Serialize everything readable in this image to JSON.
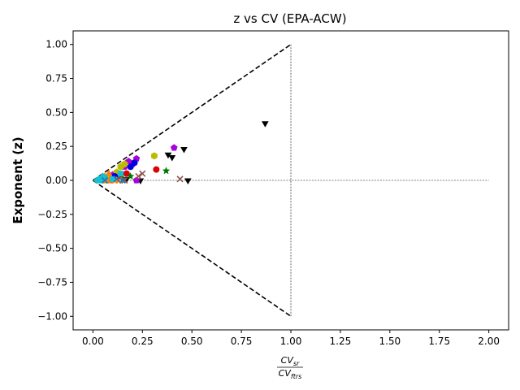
{
  "chart_data": {
    "type": "scatter",
    "title": "z vs CV (EPA-ACW)",
    "ylabel": "Exponent (z)",
    "xlabel": {
      "numerator": "CV",
      "numerator_sub": "sr",
      "denominator": "CV",
      "denominator_sub": "ftrs"
    },
    "xlim": [
      -0.1,
      2.1
    ],
    "ylim": [
      -1.1,
      1.1
    ],
    "x_ticks": [
      "0.00",
      "0.25",
      "0.50",
      "0.75",
      "1.00",
      "1.25",
      "1.50",
      "1.75",
      "2.00"
    ],
    "x_tick_values": [
      0,
      0.25,
      0.5,
      0.75,
      1.0,
      1.25,
      1.5,
      1.75,
      2.0
    ],
    "y_ticks": [
      "1.00",
      "0.75",
      "0.50",
      "0.25",
      "0.00",
      "−0.25",
      "−0.50",
      "−0.75",
      "−1.00"
    ],
    "y_tick_values": [
      1.0,
      0.75,
      0.5,
      0.25,
      0.0,
      -0.25,
      -0.5,
      -0.75,
      -1.0
    ],
    "grid": false,
    "reference_lines": [
      {
        "style": "dashed",
        "color": "#000000",
        "points": [
          [
            0,
            0
          ],
          [
            1,
            1
          ]
        ]
      },
      {
        "style": "dashed",
        "color": "#000000",
        "points": [
          [
            0,
            0
          ],
          [
            1,
            -1
          ]
        ]
      },
      {
        "style": "dotted",
        "color": "#000000",
        "points": [
          [
            1,
            1
          ],
          [
            1,
            -1
          ]
        ]
      },
      {
        "style": "dotted",
        "color": "#000000",
        "points": [
          [
            0,
            0
          ],
          [
            2,
            0
          ]
        ]
      }
    ],
    "series": [
      {
        "marker": "triangle-down",
        "color": "#000000",
        "points": [
          [
            0.87,
            0.42
          ],
          [
            0.46,
            0.23
          ],
          [
            0.38,
            0.19
          ],
          [
            0.4,
            0.17
          ],
          [
            0.48,
            0.0
          ],
          [
            0.24,
            0.0
          ],
          [
            0.17,
            0.01
          ]
        ]
      },
      {
        "marker": "pentagon",
        "color": "#aa00dd",
        "points": [
          [
            0.41,
            0.24
          ],
          [
            0.22,
            0.16
          ],
          [
            0.18,
            0.14
          ],
          [
            0.2,
            0.12
          ],
          [
            0.16,
            0.1
          ],
          [
            0.1,
            0.04
          ],
          [
            0.22,
            0.0
          ]
        ]
      },
      {
        "marker": "hexagon",
        "color": "#bbbb00",
        "points": [
          [
            0.31,
            0.18
          ],
          [
            0.14,
            0.1
          ],
          [
            0.16,
            0.12
          ],
          [
            0.12,
            0.06
          ],
          [
            0.08,
            0.02
          ]
        ]
      },
      {
        "marker": "circle",
        "color": "#dd0000",
        "points": [
          [
            0.32,
            0.08
          ],
          [
            0.17,
            0.05
          ],
          [
            0.14,
            0.03
          ],
          [
            0.12,
            0.02
          ]
        ]
      },
      {
        "marker": "circle",
        "color": "#0000dd",
        "points": [
          [
            0.21,
            0.13
          ],
          [
            0.19,
            0.1
          ],
          [
            0.11,
            0.03
          ]
        ]
      },
      {
        "marker": "star",
        "color": "#007700",
        "points": [
          [
            0.37,
            0.07
          ],
          [
            0.19,
            0.03
          ],
          [
            0.15,
            0.01
          ]
        ]
      },
      {
        "marker": "x",
        "color": "#8c564b",
        "points": [
          [
            0.44,
            0.01
          ],
          [
            0.25,
            0.05
          ],
          [
            0.23,
            0.03
          ],
          [
            0.16,
            0.0
          ],
          [
            0.08,
            0.0
          ]
        ]
      },
      {
        "marker": "x",
        "color": "#ff7f0e",
        "points": [
          [
            0.04,
            0.0
          ],
          [
            0.07,
            0.0
          ],
          [
            0.09,
            0.0
          ],
          [
            0.11,
            0.0
          ],
          [
            0.13,
            0.0
          ]
        ]
      },
      {
        "marker": "triangle-up",
        "color": "#ff7f0e",
        "points": [
          [
            0.08,
            0.05
          ],
          [
            0.06,
            0.03
          ],
          [
            0.09,
            0.02
          ],
          [
            0.05,
            0.0
          ],
          [
            0.07,
            0.0
          ],
          [
            0.1,
            0.0
          ],
          [
            0.12,
            0.0
          ]
        ]
      },
      {
        "marker": "square",
        "color": "#17becf",
        "points": [
          [
            0.14,
            0.05
          ],
          [
            0.06,
            0.02
          ],
          [
            0.04,
            0.0
          ],
          [
            0.1,
            0.01
          ]
        ]
      },
      {
        "marker": "diamond",
        "color": "#17becf",
        "points": [
          [
            0.02,
            0.0
          ],
          [
            0.05,
            0.03
          ],
          [
            0.03,
            0.01
          ]
        ]
      },
      {
        "marker": "x",
        "color": "#1f77b4",
        "points": [
          [
            0.06,
            0.0
          ],
          [
            0.15,
            0.0
          ],
          [
            0.12,
            0.01
          ]
        ]
      }
    ]
  }
}
